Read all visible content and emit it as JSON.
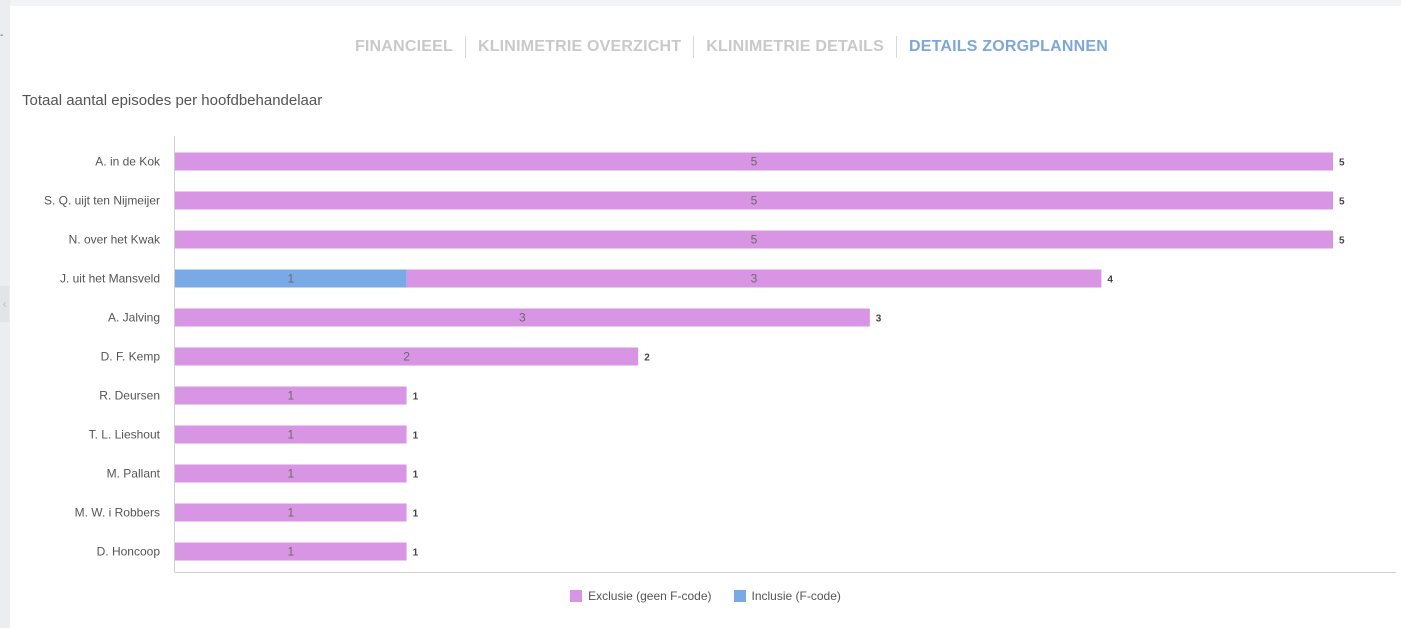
{
  "tabs": [
    {
      "label": "FINANCIEEL",
      "active": false
    },
    {
      "label": "KLINIMETRIE OVERZICHT",
      "active": false
    },
    {
      "label": "KLINIMETRIE DETAILS",
      "active": false
    },
    {
      "label": "DETAILS ZORGPLANNEN",
      "active": true
    }
  ],
  "colors": {
    "exclusie": "#d795e4",
    "inclusie": "#7aaae6",
    "active_tab": "#7ea7d8",
    "inactive_tab": "#c9c9c9"
  },
  "chart_data": {
    "type": "bar",
    "orientation": "horizontal",
    "stacked": true,
    "title": "Totaal aantal episodes per hoofdbehandelaar",
    "categories": [
      "A. in de Kok",
      "S. Q. uijt ten Nijmeijer",
      "N. over het Kwak",
      "J. uit het Mansveld",
      "A. Jalving",
      "D. F. Kemp",
      "R. Deursen",
      "T. L. Lieshout",
      "M. Pallant",
      "M. W. i Robbers",
      "D. Honcoop"
    ],
    "series": [
      {
        "name": "Inclusie (F-code)",
        "color": "#7aaae6",
        "values": [
          0,
          0,
          0,
          1,
          0,
          0,
          0,
          0,
          0,
          0,
          0
        ]
      },
      {
        "name": "Exclusie (geen F-code)",
        "color": "#d795e4",
        "values": [
          5,
          5,
          5,
          3,
          3,
          2,
          1,
          1,
          1,
          1,
          1
        ]
      }
    ],
    "totals": [
      5,
      5,
      5,
      4,
      3,
      2,
      1,
      1,
      1,
      1,
      1
    ],
    "xlim": [
      0,
      5.25
    ],
    "grid": false,
    "legend": {
      "position": "bottom-center",
      "items": [
        "Exclusie (geen F-code)",
        "Inclusie (F-code)"
      ]
    }
  }
}
